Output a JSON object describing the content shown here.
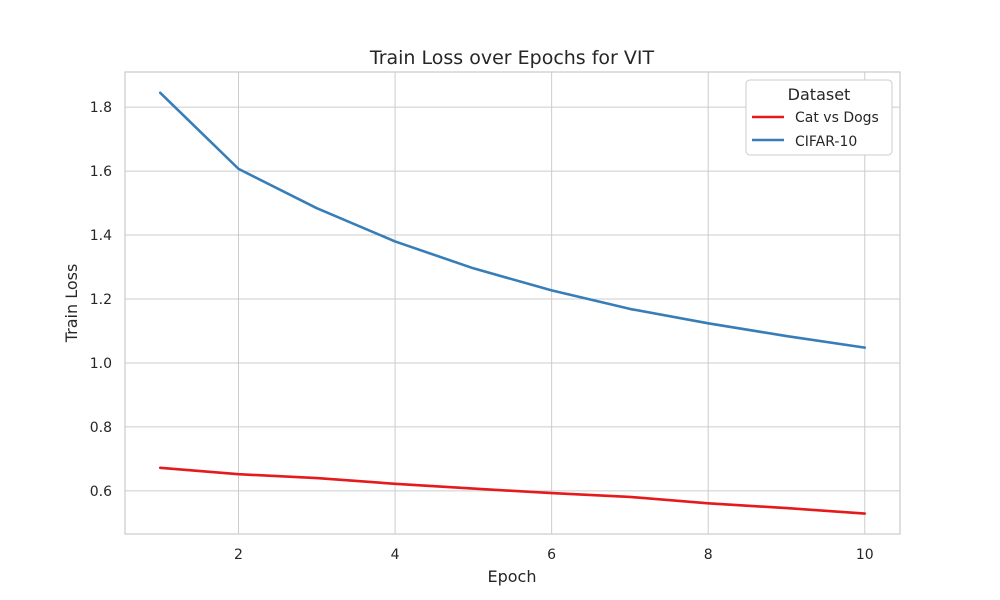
{
  "chart_data": {
    "type": "line",
    "title": "Train Loss over Epochs for VIT",
    "xlabel": "Epoch",
    "ylabel": "Train Loss",
    "x": [
      1,
      2,
      3,
      4,
      5,
      6,
      7,
      8,
      9,
      10
    ],
    "xlim": [
      0.55,
      10.45
    ],
    "ylim": [
      0.465,
      1.91
    ],
    "xticks": [
      2,
      4,
      6,
      8,
      10
    ],
    "yticks": [
      0.6,
      0.8,
      1.0,
      1.2,
      1.4,
      1.6,
      1.8
    ],
    "xtick_labels": [
      "2",
      "4",
      "6",
      "8",
      "10"
    ],
    "ytick_labels": [
      "0.6",
      "0.8",
      "1.0",
      "1.2",
      "1.4",
      "1.6",
      "1.8"
    ],
    "grid": true,
    "legend": {
      "title": "Dataset",
      "placement": "top-right"
    },
    "series": [
      {
        "name": "Cat vs Dogs",
        "color": "#e41a1c",
        "values": [
          0.672,
          0.652,
          0.64,
          0.622,
          0.607,
          0.593,
          0.581,
          0.561,
          0.546,
          0.529
        ]
      },
      {
        "name": "CIFAR-10",
        "color": "#377eb8",
        "values": [
          1.845,
          1.607,
          1.484,
          1.38,
          1.296,
          1.227,
          1.169,
          1.124,
          1.084,
          1.048
        ]
      }
    ]
  }
}
